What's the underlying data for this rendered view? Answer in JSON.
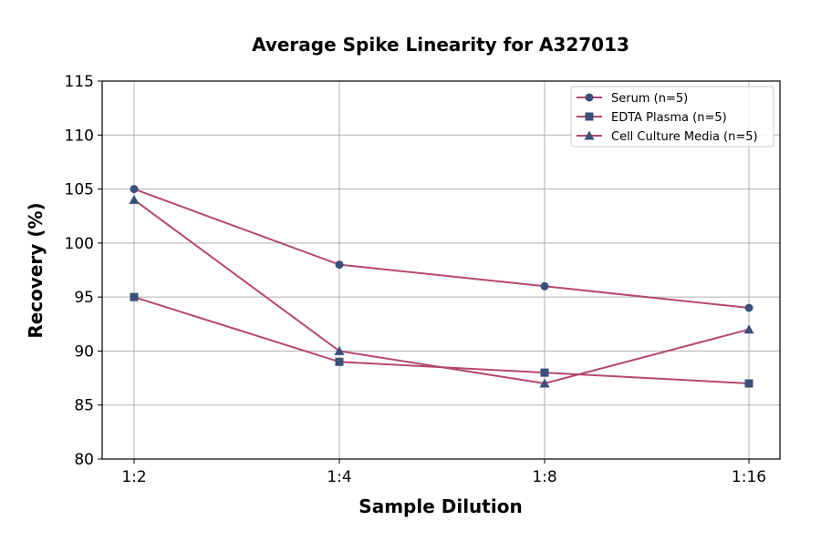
{
  "chart_data": {
    "type": "line",
    "title": "Average Spike Linearity for A327013",
    "xlabel": "Sample Dilution",
    "ylabel": "Recovery (%)",
    "categories": [
      "1:2",
      "1:4",
      "1:8",
      "1:16"
    ],
    "ylim": [
      80,
      115
    ],
    "yticks": [
      80,
      85,
      90,
      95,
      100,
      105,
      110,
      115
    ],
    "grid": true,
    "legend_position": "top-right",
    "line_color": "#b5486f",
    "marker_color": "#3b4f7b",
    "series": [
      {
        "name": "Serum (n=5)",
        "marker": "circle",
        "values": [
          105,
          98,
          96,
          94
        ]
      },
      {
        "name": "EDTA Plasma (n=5)",
        "marker": "square",
        "values": [
          95,
          89,
          88,
          87
        ]
      },
      {
        "name": "Cell Culture Media (n=5)",
        "marker": "triangle",
        "values": [
          104,
          90,
          87,
          92
        ]
      }
    ]
  }
}
